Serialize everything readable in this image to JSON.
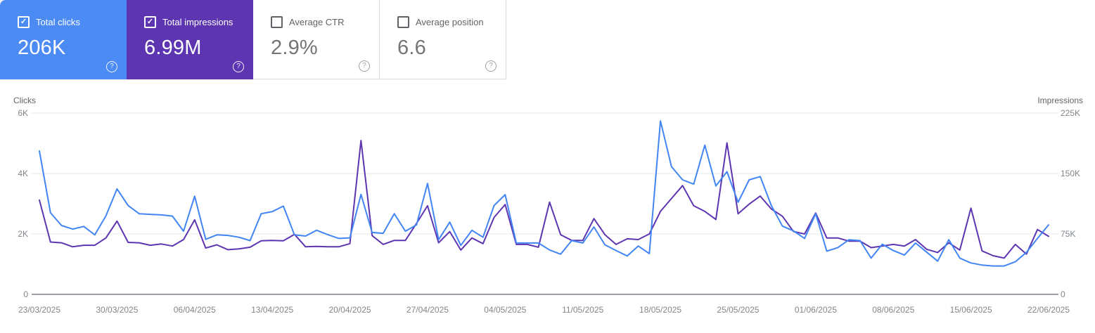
{
  "cards": [
    {
      "label": "Total clicks",
      "value": "206K",
      "checked": true,
      "bg": "#4c8bf4"
    },
    {
      "label": "Total impressions",
      "value": "6.99M",
      "checked": true,
      "bg": "#5e35b1"
    },
    {
      "label": "Average CTR",
      "value": "2.9%",
      "checked": false,
      "bg": "#ffffff"
    },
    {
      "label": "Average position",
      "value": "6.6",
      "checked": false,
      "bg": "#ffffff"
    }
  ],
  "help_icon_glyph": "?",
  "check_icon_glyph": "✓",
  "colors": {
    "clicks_line": "#4285f4",
    "impressions_line": "#5e35b1",
    "gridline": "#e8eaed",
    "axis_line": "#9aa0a6",
    "tick_text": "#80868b",
    "axis_title_text": "#5f6368"
  },
  "chart_data": {
    "type": "line",
    "grid": true,
    "legend_position": "none",
    "left_axis": {
      "label": "Clicks",
      "ticks": [
        "6K",
        "4K",
        "2K",
        "0"
      ],
      "max": 6000
    },
    "right_axis": {
      "label": "Impressions",
      "ticks": [
        "225K",
        "150K",
        "75K",
        "0"
      ],
      "max": 225000
    },
    "x_tick_labels": [
      "23/03/2025",
      "30/03/2025",
      "06/04/2025",
      "13/04/2025",
      "20/04/2025",
      "27/04/2025",
      "04/05/2025",
      "11/05/2025",
      "18/05/2025",
      "25/05/2025",
      "01/06/2025",
      "08/06/2025",
      "15/06/2025",
      "22/06/2025"
    ],
    "points_per_label": 7,
    "series": [
      {
        "name": "Total clicks",
        "axis": "left",
        "color": "#4285f4",
        "values": [
          4750,
          2700,
          2280,
          2160,
          2250,
          1970,
          2600,
          3490,
          2940,
          2670,
          2650,
          2630,
          2590,
          2090,
          3250,
          1820,
          1970,
          1950,
          1890,
          1780,
          2670,
          2740,
          2920,
          1970,
          1930,
          2120,
          1980,
          1850,
          1870,
          3310,
          2050,
          2020,
          2670,
          2090,
          2300,
          3670,
          1810,
          2390,
          1620,
          2120,
          1890,
          2940,
          3300,
          1700,
          1700,
          1700,
          1470,
          1330,
          1780,
          1700,
          2230,
          1640,
          1450,
          1270,
          1600,
          1350,
          5740,
          4230,
          3790,
          3650,
          4940,
          3590,
          4060,
          3050,
          3790,
          3900,
          2940,
          2260,
          2100,
          1850,
          2670,
          1430,
          1550,
          1810,
          1780,
          1200,
          1660,
          1450,
          1300,
          1700,
          1400,
          1100,
          1810,
          1200,
          1040,
          970,
          940,
          940,
          1080,
          1390,
          1850,
          2300
        ]
      },
      {
        "name": "Total impressions",
        "axis": "right",
        "color": "#5e35b1",
        "values": [
          117000,
          65000,
          64000,
          59000,
          61000,
          61000,
          70000,
          91000,
          64500,
          64000,
          61000,
          62500,
          60000,
          68000,
          92500,
          57500,
          61500,
          55500,
          56500,
          58500,
          66500,
          67000,
          66500,
          74500,
          59000,
          59500,
          59000,
          59000,
          63000,
          191000,
          73000,
          62000,
          67000,
          67000,
          88000,
          110000,
          64000,
          78000,
          55000,
          70000,
          63000,
          95500,
          111500,
          62000,
          62000,
          58500,
          114500,
          74000,
          67000,
          67000,
          94000,
          74000,
          62000,
          69000,
          68000,
          75000,
          103000,
          119000,
          135000,
          110000,
          103000,
          93000,
          188000,
          100000,
          112000,
          122000,
          106000,
          97000,
          78000,
          75000,
          101000,
          70000,
          70000,
          66000,
          66000,
          58000,
          60000,
          62000,
          60000,
          68000,
          56000,
          52000,
          64000,
          55000,
          107000,
          54000,
          48000,
          45000,
          62000,
          50000,
          80500,
          72000
        ]
      }
    ]
  }
}
